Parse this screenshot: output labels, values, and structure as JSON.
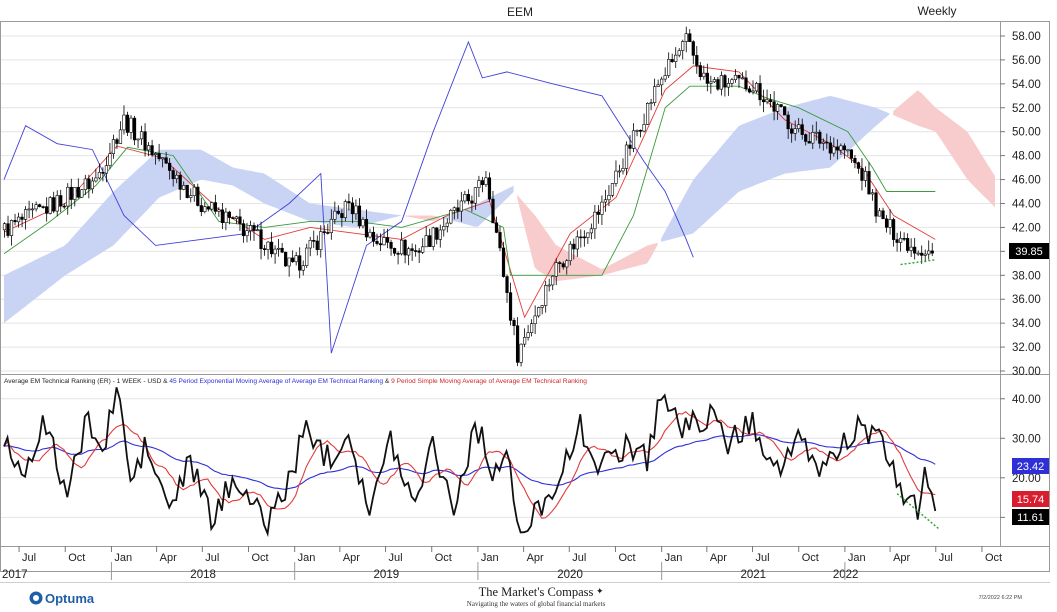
{
  "chart_data": [
    {
      "type": "candlestick",
      "title": "EEM",
      "period_label": "Weekly",
      "ylim": [
        30,
        58.5
      ],
      "y_ticks": [
        "58.00",
        "56.00",
        "54.00",
        "52.00",
        "50.00",
        "48.00",
        "46.00",
        "44.00",
        "42.00",
        "40.00",
        "38.00",
        "36.00",
        "34.00",
        "32.00",
        "30.00"
      ],
      "y_tick_values": [
        58,
        56,
        54,
        52,
        50,
        48,
        46,
        44,
        42,
        40,
        38,
        36,
        34,
        32,
        30
      ],
      "last_price_label": "39.85",
      "last_price": 39.85,
      "x_start": "2017-06-01",
      "x_end": "2022-10-31",
      "close_anchors": [
        [
          "2017-06-02",
          41.8
        ],
        [
          "2017-09-01",
          43.8
        ],
        [
          "2017-12-01",
          46.0
        ],
        [
          "2018-01-26",
          51.0
        ],
        [
          "2018-04-01",
          48.0
        ],
        [
          "2018-06-29",
          44.0
        ],
        [
          "2018-10-26",
          41.0
        ],
        [
          "2018-12-28",
          38.5
        ],
        [
          "2019-04-19",
          44.0
        ],
        [
          "2019-06-07",
          41.0
        ],
        [
          "2019-08-30",
          40.0
        ],
        [
          "2019-12-31",
          45.0
        ],
        [
          "2020-01-17",
          46.5
        ],
        [
          "2020-03-20",
          31.5
        ],
        [
          "2020-06-01",
          38.5
        ],
        [
          "2020-09-01",
          43.5
        ],
        [
          "2020-12-31",
          54.5
        ],
        [
          "2021-02-19",
          57.5
        ],
        [
          "2021-04-01",
          54.0
        ],
        [
          "2021-06-30",
          54.0
        ],
        [
          "2021-09-30",
          50.0
        ],
        [
          "2021-12-31",
          48.5
        ],
        [
          "2022-02-11",
          46.0
        ],
        [
          "2022-03-14",
          42.5
        ],
        [
          "2022-05-13",
          40.5
        ],
        [
          "2022-06-30",
          39.85
        ]
      ],
      "series": [
        {
          "name": "Tenkan",
          "color": "#e23b3b",
          "points": [
            [
              "2017-06-01",
              41.6
            ],
            [
              "2017-10-01",
              44.0
            ],
            [
              "2018-01-12",
              48.8
            ],
            [
              "2018-04-13",
              47.8
            ],
            [
              "2018-08-03",
              43.5
            ],
            [
              "2018-11-02",
              41.0
            ],
            [
              "2019-02-01",
              42.0
            ],
            [
              "2019-05-03",
              41.5
            ],
            [
              "2019-08-02",
              41.0
            ],
            [
              "2019-11-01",
              43.0
            ],
            [
              "2020-01-24",
              44.2
            ],
            [
              "2020-04-03",
              34.5
            ],
            [
              "2020-07-03",
              41.5
            ],
            [
              "2020-10-02",
              44.5
            ],
            [
              "2021-01-08",
              53.5
            ],
            [
              "2021-03-05",
              55.5
            ],
            [
              "2021-06-04",
              55.0
            ],
            [
              "2021-09-03",
              51.0
            ],
            [
              "2021-12-03",
              49.0
            ],
            [
              "2022-02-04",
              47.0
            ],
            [
              "2022-04-08",
              43.0
            ],
            [
              "2022-06-30",
              41.0
            ]
          ]
        },
        {
          "name": "Kijun",
          "color": "#3b9a3b",
          "points": [
            [
              "2017-06-01",
              39.8
            ],
            [
              "2017-09-01",
              42.5
            ],
            [
              "2017-12-01",
              45.5
            ],
            [
              "2018-02-02",
              48.7
            ],
            [
              "2018-05-04",
              48.0
            ],
            [
              "2018-08-03",
              42.5
            ],
            [
              "2018-11-02",
              42.0
            ],
            [
              "2019-02-01",
              42.5
            ],
            [
              "2019-05-03",
              42.5
            ],
            [
              "2019-08-02",
              42.0
            ],
            [
              "2019-12-06",
              43.5
            ],
            [
              "2020-02-21",
              42.0
            ],
            [
              "2020-03-06",
              38.0
            ],
            [
              "2020-06-26",
              38.0
            ],
            [
              "2020-09-04",
              38.0
            ],
            [
              "2020-11-06",
              43.0
            ],
            [
              "2021-01-08",
              52.0
            ],
            [
              "2021-02-26",
              53.8
            ],
            [
              "2021-06-04",
              53.8
            ],
            [
              "2021-07-30",
              52.8
            ],
            [
              "2021-10-01",
              52.0
            ],
            [
              "2022-01-07",
              50.0
            ],
            [
              "2022-02-25",
              47.0
            ],
            [
              "2022-03-25",
              45.0
            ],
            [
              "2022-06-30",
              45.0
            ]
          ]
        },
        {
          "name": "Chikou",
          "color": "#4040d8",
          "points": [
            [
              "2017-06-01",
              46.0
            ],
            [
              "2017-07-14",
              50.5
            ],
            [
              "2017-09-15",
              49.0
            ],
            [
              "2017-11-24",
              48.5
            ],
            [
              "2018-01-26",
              43.0
            ],
            [
              "2018-03-30",
              40.5
            ],
            [
              "2018-06-29",
              41.0
            ],
            [
              "2018-09-28",
              41.5
            ],
            [
              "2018-12-21",
              44.0
            ],
            [
              "2019-02-22",
              46.5
            ],
            [
              "2019-03-15",
              31.5
            ],
            [
              "2019-05-24",
              40.5
            ],
            [
              "2019-08-02",
              42.5
            ],
            [
              "2019-10-04",
              50.0
            ],
            [
              "2019-12-13",
              57.5
            ],
            [
              "2020-01-10",
              54.5
            ],
            [
              "2020-02-28",
              55.0
            ],
            [
              "2020-05-29",
              54.0
            ],
            [
              "2020-09-04",
              53.0
            ],
            [
              "2020-11-27",
              47.5
            ],
            [
              "2021-01-08",
              45.0
            ],
            [
              "2021-02-19",
              41.0
            ],
            [
              "2021-03-05",
              39.5
            ]
          ]
        }
      ],
      "cloud": {
        "bull_color": "#c9d4f5",
        "bear_color": "#f8cccc",
        "points": [
          [
            "2017-06-01",
            34.0,
            38.0
          ],
          [
            "2017-10-01",
            38.0,
            40.5
          ],
          [
            "2018-01-05",
            40.5,
            45.0
          ],
          [
            "2018-04-06",
            44.5,
            48.5
          ],
          [
            "2018-06-29",
            46.0,
            48.5
          ],
          [
            "2018-08-31",
            45.5,
            47.0
          ],
          [
            "2018-11-02",
            44.0,
            46.5
          ],
          [
            "2019-02-01",
            42.5,
            44.0
          ],
          [
            "2019-05-03",
            42.0,
            43.5
          ],
          [
            "2019-08-02",
            43.0,
            43.0
          ],
          [
            "2019-10-04",
            43.0,
            42.5
          ],
          [
            "2019-12-31",
            42.0,
            44.0
          ],
          [
            "2020-03-13",
            45.0,
            45.5
          ],
          [
            "2020-04-24",
            43.0,
            38.5
          ],
          [
            "2020-06-05",
            40.5,
            37.5
          ],
          [
            "2020-09-04",
            38.5,
            38.0
          ],
          [
            "2020-12-04",
            40.5,
            39.0
          ],
          [
            "2021-03-05",
            41.5,
            46.0
          ],
          [
            "2021-06-04",
            45.0,
            50.5
          ],
          [
            "2021-09-03",
            46.5,
            52.0
          ],
          [
            "2021-12-03",
            47.0,
            53.0
          ],
          [
            "2022-03-04",
            50.5,
            52.0
          ],
          [
            "2022-05-27",
            53.5,
            50.5
          ],
          [
            "2022-07-01",
            52.0,
            50.0
          ],
          [
            "2022-09-02",
            50.0,
            46.0
          ],
          [
            "2022-10-31",
            46.0,
            43.5
          ]
        ]
      },
      "support_trendline": [
        [
          "2022-04-22",
          38.9
        ],
        [
          "2022-07-01",
          39.3
        ]
      ]
    },
    {
      "type": "line",
      "title": "Average EM Technical Ranking (ER) - 1 WEEK - USD & 45 Period Exponential Moving Average of Average EM Technical Ranking & 9 Period Simple Moving Average of Average EM Technical Ranking",
      "legend_parts": [
        "Average EM Technical Ranking (ER) - 1 WEEK - USD & ",
        "45 Period Exponential Moving Average of Average EM Technical Ranking",
        " & ",
        "9 Period Simple Moving Average of Average EM Technical Ranking"
      ],
      "ylim": [
        3,
        45
      ],
      "y_ticks": [
        "40.00",
        "30.00",
        "20.00",
        "10.00"
      ],
      "y_tick_values": [
        40,
        30,
        20,
        10
      ],
      "ranking_anchors": [
        [
          "2017-06-01",
          30
        ],
        [
          "2017-07-07",
          21
        ],
        [
          "2017-08-18",
          34
        ],
        [
          "2017-10-06",
          16
        ],
        [
          "2017-11-17",
          36
        ],
        [
          "2017-12-15",
          25
        ],
        [
          "2018-01-12",
          44
        ],
        [
          "2018-02-09",
          18
        ],
        [
          "2018-03-09",
          28
        ],
        [
          "2018-04-27",
          12
        ],
        [
          "2018-06-08",
          24
        ],
        [
          "2018-07-20",
          9
        ],
        [
          "2018-09-07",
          21
        ],
        [
          "2018-11-02",
          8
        ],
        [
          "2018-12-14",
          17
        ],
        [
          "2019-01-25",
          33
        ],
        [
          "2019-03-08",
          25
        ],
        [
          "2019-04-19",
          32
        ],
        [
          "2019-05-31",
          11
        ],
        [
          "2019-07-12",
          30
        ],
        [
          "2019-08-23",
          14
        ],
        [
          "2019-10-04",
          29
        ],
        [
          "2019-11-15",
          12
        ],
        [
          "2019-12-27",
          34
        ],
        [
          "2020-01-31",
          22
        ],
        [
          "2020-02-28",
          25
        ],
        [
          "2020-03-27",
          4
        ],
        [
          "2020-05-08",
          14
        ],
        [
          "2020-06-19",
          22
        ],
        [
          "2020-07-24",
          33
        ],
        [
          "2020-09-04",
          22
        ],
        [
          "2020-10-23",
          29
        ],
        [
          "2020-12-04",
          25
        ],
        [
          "2020-12-31",
          42
        ],
        [
          "2021-02-12",
          32
        ],
        [
          "2021-04-02",
          36
        ],
        [
          "2021-05-14",
          29
        ],
        [
          "2021-07-02",
          34
        ],
        [
          "2021-08-20",
          22
        ],
        [
          "2021-10-01",
          29
        ],
        [
          "2021-11-12",
          22
        ],
        [
          "2021-12-17",
          27
        ],
        [
          "2022-01-28",
          33
        ],
        [
          "2022-03-11",
          29
        ],
        [
          "2022-04-29",
          16
        ],
        [
          "2022-05-27",
          11.61
        ],
        [
          "2022-06-10",
          20
        ],
        [
          "2022-06-30",
          11.61
        ]
      ],
      "series": [
        {
          "name": "Average EM Technical Ranking (ER)",
          "color": "#111111",
          "last_value_label": "11.61",
          "last_value": 11.61
        },
        {
          "name": "45 Period Exponential Moving Average of Average EM Technical Ranking",
          "color": "#2f2fd8",
          "last_value_label": "23.42",
          "last_value": 23.42
        },
        {
          "name": "9 Period Simple Moving Average of Average EM Technical Ranking",
          "color": "#e23b3b",
          "last_value_label": "15.74",
          "last_value": 15.74
        }
      ],
      "declining_trendline": [
        [
          "2022-04-15",
          16.0
        ],
        [
          "2022-07-08",
          7.0
        ]
      ]
    }
  ],
  "time_axis": {
    "months": [
      [
        "2017-07-01",
        "Jul"
      ],
      [
        "2017-10-01",
        "Oct"
      ],
      [
        "2018-01-01",
        "Jan"
      ],
      [
        "2018-04-01",
        "Apr"
      ],
      [
        "2018-07-01",
        "Jul"
      ],
      [
        "2018-10-01",
        "Oct"
      ],
      [
        "2019-01-01",
        "Jan"
      ],
      [
        "2019-04-01",
        "Apr"
      ],
      [
        "2019-07-01",
        "Jul"
      ],
      [
        "2019-10-01",
        "Oct"
      ],
      [
        "2020-01-01",
        "Jan"
      ],
      [
        "2020-04-01",
        "Apr"
      ],
      [
        "2020-07-01",
        "Jul"
      ],
      [
        "2020-10-01",
        "Oct"
      ],
      [
        "2021-01-01",
        "Jan"
      ],
      [
        "2021-04-01",
        "Apr"
      ],
      [
        "2021-07-01",
        "Jul"
      ],
      [
        "2021-10-01",
        "Oct"
      ],
      [
        "2022-01-01",
        "Jan"
      ],
      [
        "2022-04-01",
        "Apr"
      ],
      [
        "2022-07-01",
        "Jul"
      ],
      [
        "2022-10-01",
        "Oct"
      ]
    ],
    "years": [
      [
        "2017-06-01",
        "2017"
      ],
      [
        "2018-07-01",
        "2018"
      ],
      [
        "2019-07-01",
        "2019"
      ],
      [
        "2020-07-01",
        "2020"
      ],
      [
        "2021-07-01",
        "2021"
      ],
      [
        "2022-01-01",
        "2022"
      ]
    ]
  },
  "footer": {
    "logo": "Optuma",
    "brand_title": "The Market's Compass",
    "brand_tagline": "Navigating the waters of global financial markets",
    "timestamp": "7/2/2022 6:22 PM"
  },
  "colors": {
    "up_candle": "#ffffff",
    "down_candle": "#000000",
    "grid": "#e4e4e4",
    "border": "#999999",
    "trendline": "#2aa12a",
    "logo_blue": "#1e5fa8"
  }
}
